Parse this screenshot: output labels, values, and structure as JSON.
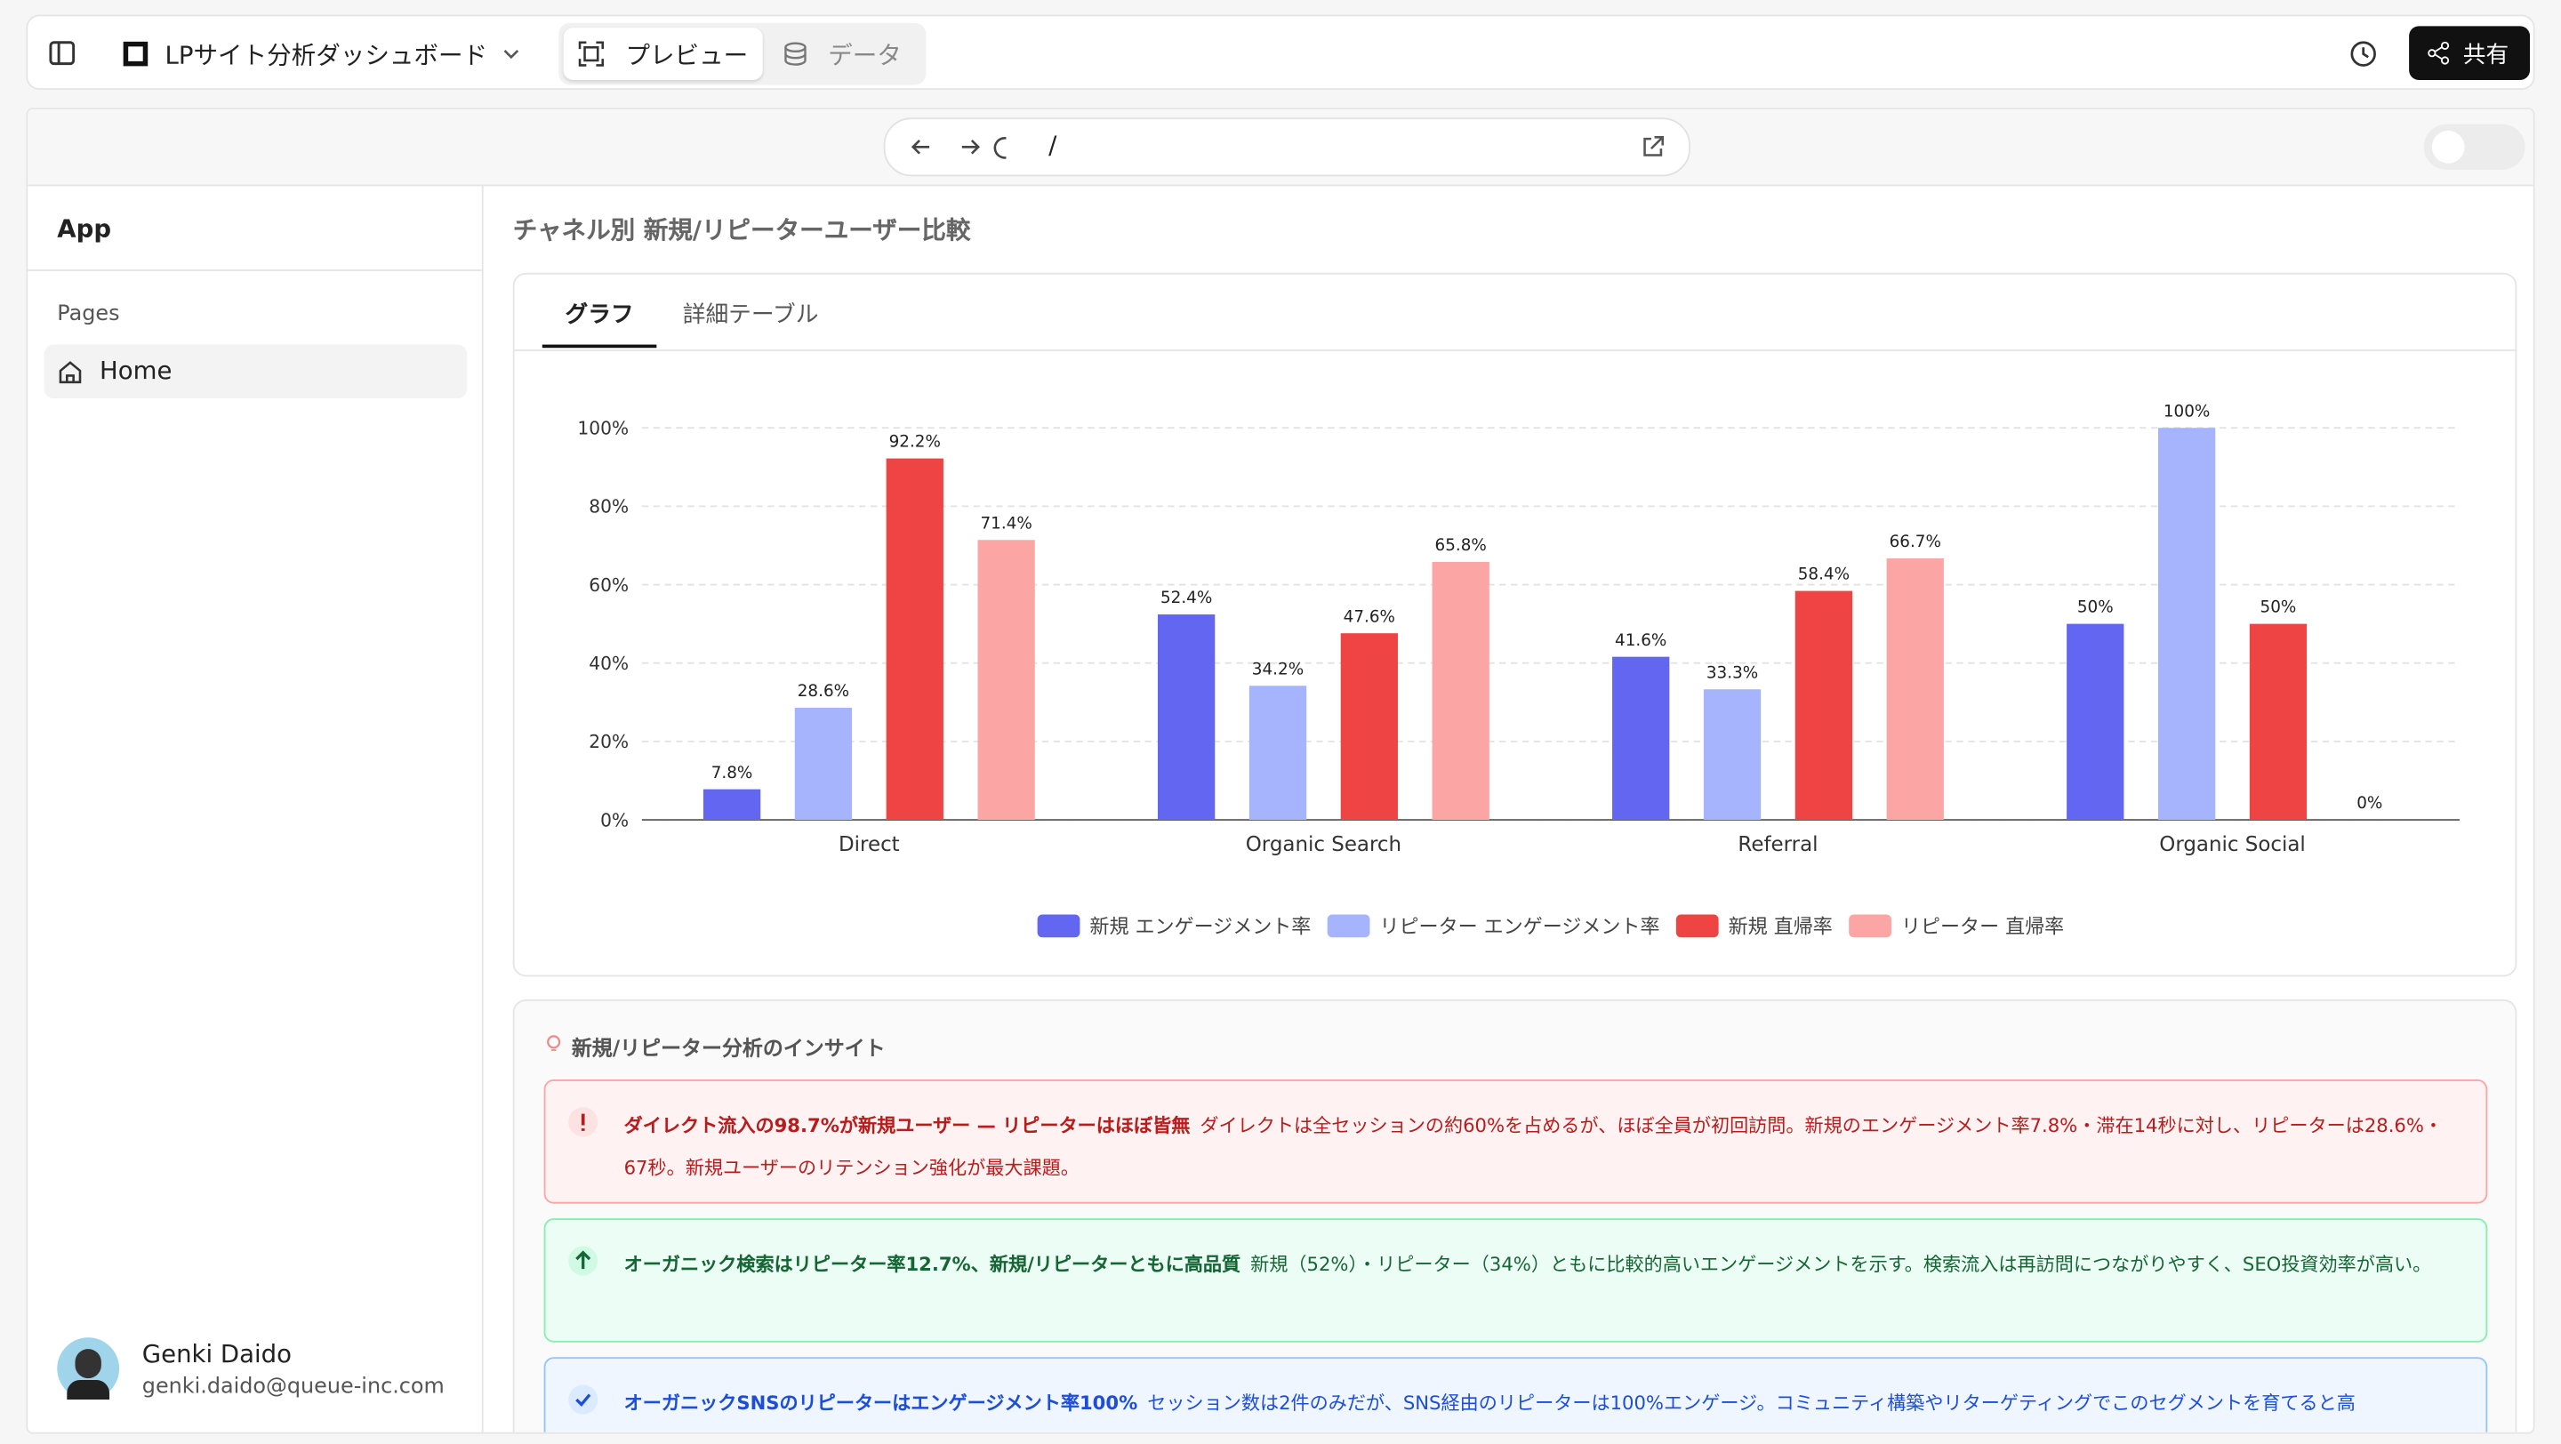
{
  "toolbar": {
    "title": "LPサイト分析ダッシュボード",
    "tabs": [
      "プレビュー",
      "データ"
    ],
    "share": "共有"
  },
  "browser": {
    "path": "/"
  },
  "sidebar": {
    "app": "App",
    "section": "Pages",
    "pages": [
      "Home"
    ],
    "user": {
      "name": "Genki Daido",
      "email": "genki.daido@queue-inc.com"
    }
  },
  "section_title": "チャネル別 新規/リピーターユーザー比較",
  "tabs": [
    "グラフ",
    "詳細テーブル"
  ],
  "chart_data": {
    "type": "bar",
    "categories": [
      "Direct",
      "Organic Search",
      "Referral",
      "Organic Social"
    ],
    "series": [
      {
        "name": "新規 エンゲージメント率",
        "color": "#6366f1",
        "values": [
          7.8,
          52.4,
          41.6,
          50
        ],
        "value_labels": [
          "7.8%",
          "52.4%",
          "41.6%",
          "50%"
        ]
      },
      {
        "name": "リピーター エンゲージメント率",
        "color": "#a5b4fc",
        "values": [
          28.6,
          34.2,
          33.3,
          100
        ],
        "value_labels": [
          "28.6%",
          "34.2%",
          "33.3%",
          "100%"
        ]
      },
      {
        "name": "新規 直帰率",
        "color": "#ef4444",
        "values": [
          92.2,
          47.6,
          58.4,
          50
        ],
        "value_labels": [
          "92.2%",
          "47.6%",
          "58.4%",
          "50%"
        ]
      },
      {
        "name": "リピーター 直帰率",
        "color": "#fca5a5",
        "values": [
          71.4,
          65.8,
          66.7,
          0
        ],
        "value_labels": [
          "71.4%",
          "65.8%",
          "66.7%",
          "0%"
        ]
      }
    ],
    "ylim": [
      0,
      100
    ],
    "yticks": [
      {
        "value": 0,
        "label": "0%"
      },
      {
        "value": 20,
        "label": "20%"
      },
      {
        "value": 40,
        "label": "40%"
      },
      {
        "value": 60,
        "label": "60%"
      },
      {
        "value": 80,
        "label": "80%"
      },
      {
        "value": 100,
        "label": "100%"
      }
    ],
    "grid": true,
    "legend": "bottom"
  },
  "insights": {
    "title": "新規/リピーター分析のインサイト",
    "items": [
      {
        "heading": "ダイレクト流入の98.7%が新規ユーザー — リピーターはほぼ皆無",
        "body": "ダイレクトは全セッションの約60%を占めるが、ほぼ全員が初回訪問。新規のエンゲージメント率7.8%・滞在14秒に対し、リピーターは28.6%・67秒。新規ユーザーのリテンション強化が最大課題。"
      },
      {
        "heading": "オーガニック検索はリピーター率12.7%、新規/リピーターともに高品質",
        "body": "新規（52%）・リピーター（34%）ともに比較的高いエンゲージメントを示す。検索流入は再訪問につながりやすく、SEO投資効率が高い。"
      },
      {
        "heading": "オーガニックSNSのリピーターはエンゲージメント率100%",
        "body": "セッション数は2件のみだが、SNS経由のリピーターは100%エンゲージ。コミュニティ構築やリターゲティングでこのセグメントを育てると高"
      }
    ]
  }
}
